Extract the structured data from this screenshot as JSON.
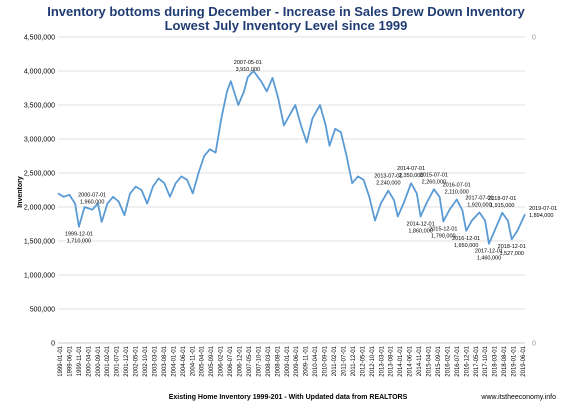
{
  "chart_data": {
    "type": "line",
    "title": "Inventory bottoms during  December - Increase in Sales Drew Down Inventory",
    "subtitle": "Lowest July Inventory Level since 1999",
    "ylabel": "Inventory",
    "xlabel": "Existing Home Inventory 1999-201 - With Updated data from REALTORS",
    "source": "www.itstheeconomy.info",
    "ylim": [
      0,
      4500000
    ],
    "y_ticks": [
      0,
      500000,
      1000000,
      1500000,
      2000000,
      2500000,
      3000000,
      3500000,
      4000000,
      4500000
    ],
    "y_tick_labels": [
      "0",
      "500,000",
      "1,000,000",
      "1,500,000",
      "2,000,000",
      "2,500,000",
      "3,000,000",
      "3,500,000",
      "4,000,000",
      "4,500,000"
    ],
    "right_axis_labels": [
      "0",
      "0"
    ],
    "x_tick_labels": [
      "1999-01-01",
      "1999-06-01",
      "1999-11-01",
      "2000-04-01",
      "2000-09-01",
      "2001-02-01",
      "2001-07-01",
      "2001-12-01",
      "2002-05-01",
      "2002-10-01",
      "2003-03-01",
      "2003-08-01",
      "2004-01-01",
      "2004-06-01",
      "2004-11-01",
      "2005-04-01",
      "2005-09-01",
      "2006-02-01",
      "2006-07-01",
      "2006-12-01",
      "2007-05-01",
      "2007-10-01",
      "2008-03-01",
      "2008-08-01",
      "2009-01-01",
      "2009-06-01",
      "2009-11-01",
      "2010-04-01",
      "2010-09-01",
      "2011-02-01",
      "2011-07-01",
      "2011-12-01",
      "2012-05-01",
      "2012-10-01",
      "2013-03-01",
      "2013-08-01",
      "2014-01-01",
      "2014-06-01",
      "2014-11-01",
      "2015-04-01",
      "2015-09-01",
      "2016-02-01",
      "2016-07-01",
      "2016-12-01",
      "2017-05-01",
      "2017-10-01",
      "2018-03-01",
      "2018-08-01",
      "2019-01-01",
      "2019-06-01"
    ],
    "x_start": "1999-01",
    "x_end": "2019-07",
    "series": [
      {
        "color": "#5b9bd5",
        "points": [
          [
            "1999-01",
            2200000
          ],
          [
            "1999-04",
            2150000
          ],
          [
            "1999-07",
            2180000
          ],
          [
            "1999-10",
            2050000
          ],
          [
            "1999-12",
            1710000
          ],
          [
            "2000-03",
            2000000
          ],
          [
            "2000-07",
            1960000
          ],
          [
            "2000-10",
            2050000
          ],
          [
            "2000-12",
            1780000
          ],
          [
            "2001-03",
            2050000
          ],
          [
            "2001-06",
            2150000
          ],
          [
            "2001-09",
            2080000
          ],
          [
            "2001-12",
            1880000
          ],
          [
            "2002-03",
            2200000
          ],
          [
            "2002-06",
            2300000
          ],
          [
            "2002-09",
            2250000
          ],
          [
            "2002-12",
            2050000
          ],
          [
            "2003-03",
            2300000
          ],
          [
            "2003-06",
            2420000
          ],
          [
            "2003-09",
            2350000
          ],
          [
            "2003-12",
            2150000
          ],
          [
            "2004-03",
            2350000
          ],
          [
            "2004-06",
            2450000
          ],
          [
            "2004-09",
            2400000
          ],
          [
            "2004-12",
            2200000
          ],
          [
            "2005-03",
            2500000
          ],
          [
            "2005-06",
            2750000
          ],
          [
            "2005-09",
            2850000
          ],
          [
            "2005-12",
            2800000
          ],
          [
            "2006-03",
            3300000
          ],
          [
            "2006-06",
            3700000
          ],
          [
            "2006-08",
            3850000
          ],
          [
            "2006-12",
            3500000
          ],
          [
            "2007-03",
            3700000
          ],
          [
            "2007-05",
            3910000
          ],
          [
            "2007-08",
            4000000
          ],
          [
            "2007-12",
            3850000
          ],
          [
            "2008-03",
            3700000
          ],
          [
            "2008-06",
            3900000
          ],
          [
            "2008-09",
            3600000
          ],
          [
            "2008-12",
            3200000
          ],
          [
            "2009-03",
            3350000
          ],
          [
            "2009-06",
            3500000
          ],
          [
            "2009-09",
            3200000
          ],
          [
            "2009-12",
            2950000
          ],
          [
            "2010-03",
            3300000
          ],
          [
            "2010-07",
            3500000
          ],
          [
            "2010-10",
            3200000
          ],
          [
            "2010-12",
            2900000
          ],
          [
            "2011-03",
            3150000
          ],
          [
            "2011-06",
            3100000
          ],
          [
            "2011-09",
            2750000
          ],
          [
            "2011-12",
            2350000
          ],
          [
            "2012-03",
            2450000
          ],
          [
            "2012-06",
            2400000
          ],
          [
            "2012-09",
            2150000
          ],
          [
            "2012-12",
            1800000
          ],
          [
            "2013-03",
            2050000
          ],
          [
            "2013-07",
            2240000
          ],
          [
            "2013-10",
            2100000
          ],
          [
            "2013-12",
            1860000
          ],
          [
            "2014-03",
            2050000
          ],
          [
            "2014-07",
            2350000
          ],
          [
            "2014-10",
            2200000
          ],
          [
            "2014-12",
            1860000
          ],
          [
            "2015-03",
            2050000
          ],
          [
            "2015-07",
            2260000
          ],
          [
            "2015-10",
            2150000
          ],
          [
            "2015-12",
            1790000
          ],
          [
            "2016-03",
            1950000
          ],
          [
            "2016-07",
            2110000
          ],
          [
            "2016-10",
            1950000
          ],
          [
            "2016-12",
            1650000
          ],
          [
            "2017-03",
            1800000
          ],
          [
            "2017-07",
            1920000
          ],
          [
            "2017-10",
            1800000
          ],
          [
            "2017-12",
            1460000
          ],
          [
            "2018-03",
            1650000
          ],
          [
            "2018-07",
            1915000
          ],
          [
            "2018-10",
            1800000
          ],
          [
            "2018-12",
            1527000
          ],
          [
            "2019-03",
            1650000
          ],
          [
            "2019-07",
            1894000
          ]
        ]
      }
    ],
    "annotations": [
      {
        "date": "1999-12-01",
        "value": "1,710,000",
        "x": "1999-12",
        "y": 1710000,
        "pos": "below"
      },
      {
        "date": "2000-07-01",
        "value": "1,960,000",
        "x": "2000-07",
        "y": 1960000,
        "pos": "above"
      },
      {
        "date": "2007-05-01",
        "value": "3,910,000",
        "x": "2007-05",
        "y": 3910000,
        "pos": "above"
      },
      {
        "date": "2013-07-01",
        "value": "2,240,000",
        "x": "2013-07",
        "y": 2240000,
        "pos": "above"
      },
      {
        "date": "2014-07-01",
        "value": "2,350,000",
        "x": "2014-07",
        "y": 2350000,
        "pos": "above"
      },
      {
        "date": "2014-12-01",
        "value": "1,860,000",
        "x": "2014-12",
        "y": 1860000,
        "pos": "below"
      },
      {
        "date": "2015-07-01",
        "value": "2,260,000",
        "x": "2015-07",
        "y": 2260000,
        "pos": "above"
      },
      {
        "date": "2015-12-01",
        "value": "1,790,000",
        "x": "2015-12",
        "y": 1790000,
        "pos": "below"
      },
      {
        "date": "2016-07-01",
        "value": "2,110,000",
        "x": "2016-07",
        "y": 2110000,
        "pos": "above"
      },
      {
        "date": "2016-12-01",
        "value": "1,650,000",
        "x": "2016-12",
        "y": 1650000,
        "pos": "below"
      },
      {
        "date": "2017-07-01",
        "value": "1,920,000",
        "x": "2017-07",
        "y": 1920000,
        "pos": "above"
      },
      {
        "date": "2017-12-01",
        "value": "1,460,000",
        "x": "2017-12",
        "y": 1460000,
        "pos": "below"
      },
      {
        "date": "2018-07-01",
        "value": "1,915,000",
        "x": "2018-07",
        "y": 1915000,
        "pos": "above"
      },
      {
        "date": "2018-12-01",
        "value": "1,527,000",
        "x": "2018-12",
        "y": 1527000,
        "pos": "below"
      },
      {
        "date": "2019-07-01",
        "value": "1,894,000",
        "x": "2019-07",
        "y": 1894000,
        "pos": "right"
      }
    ]
  }
}
